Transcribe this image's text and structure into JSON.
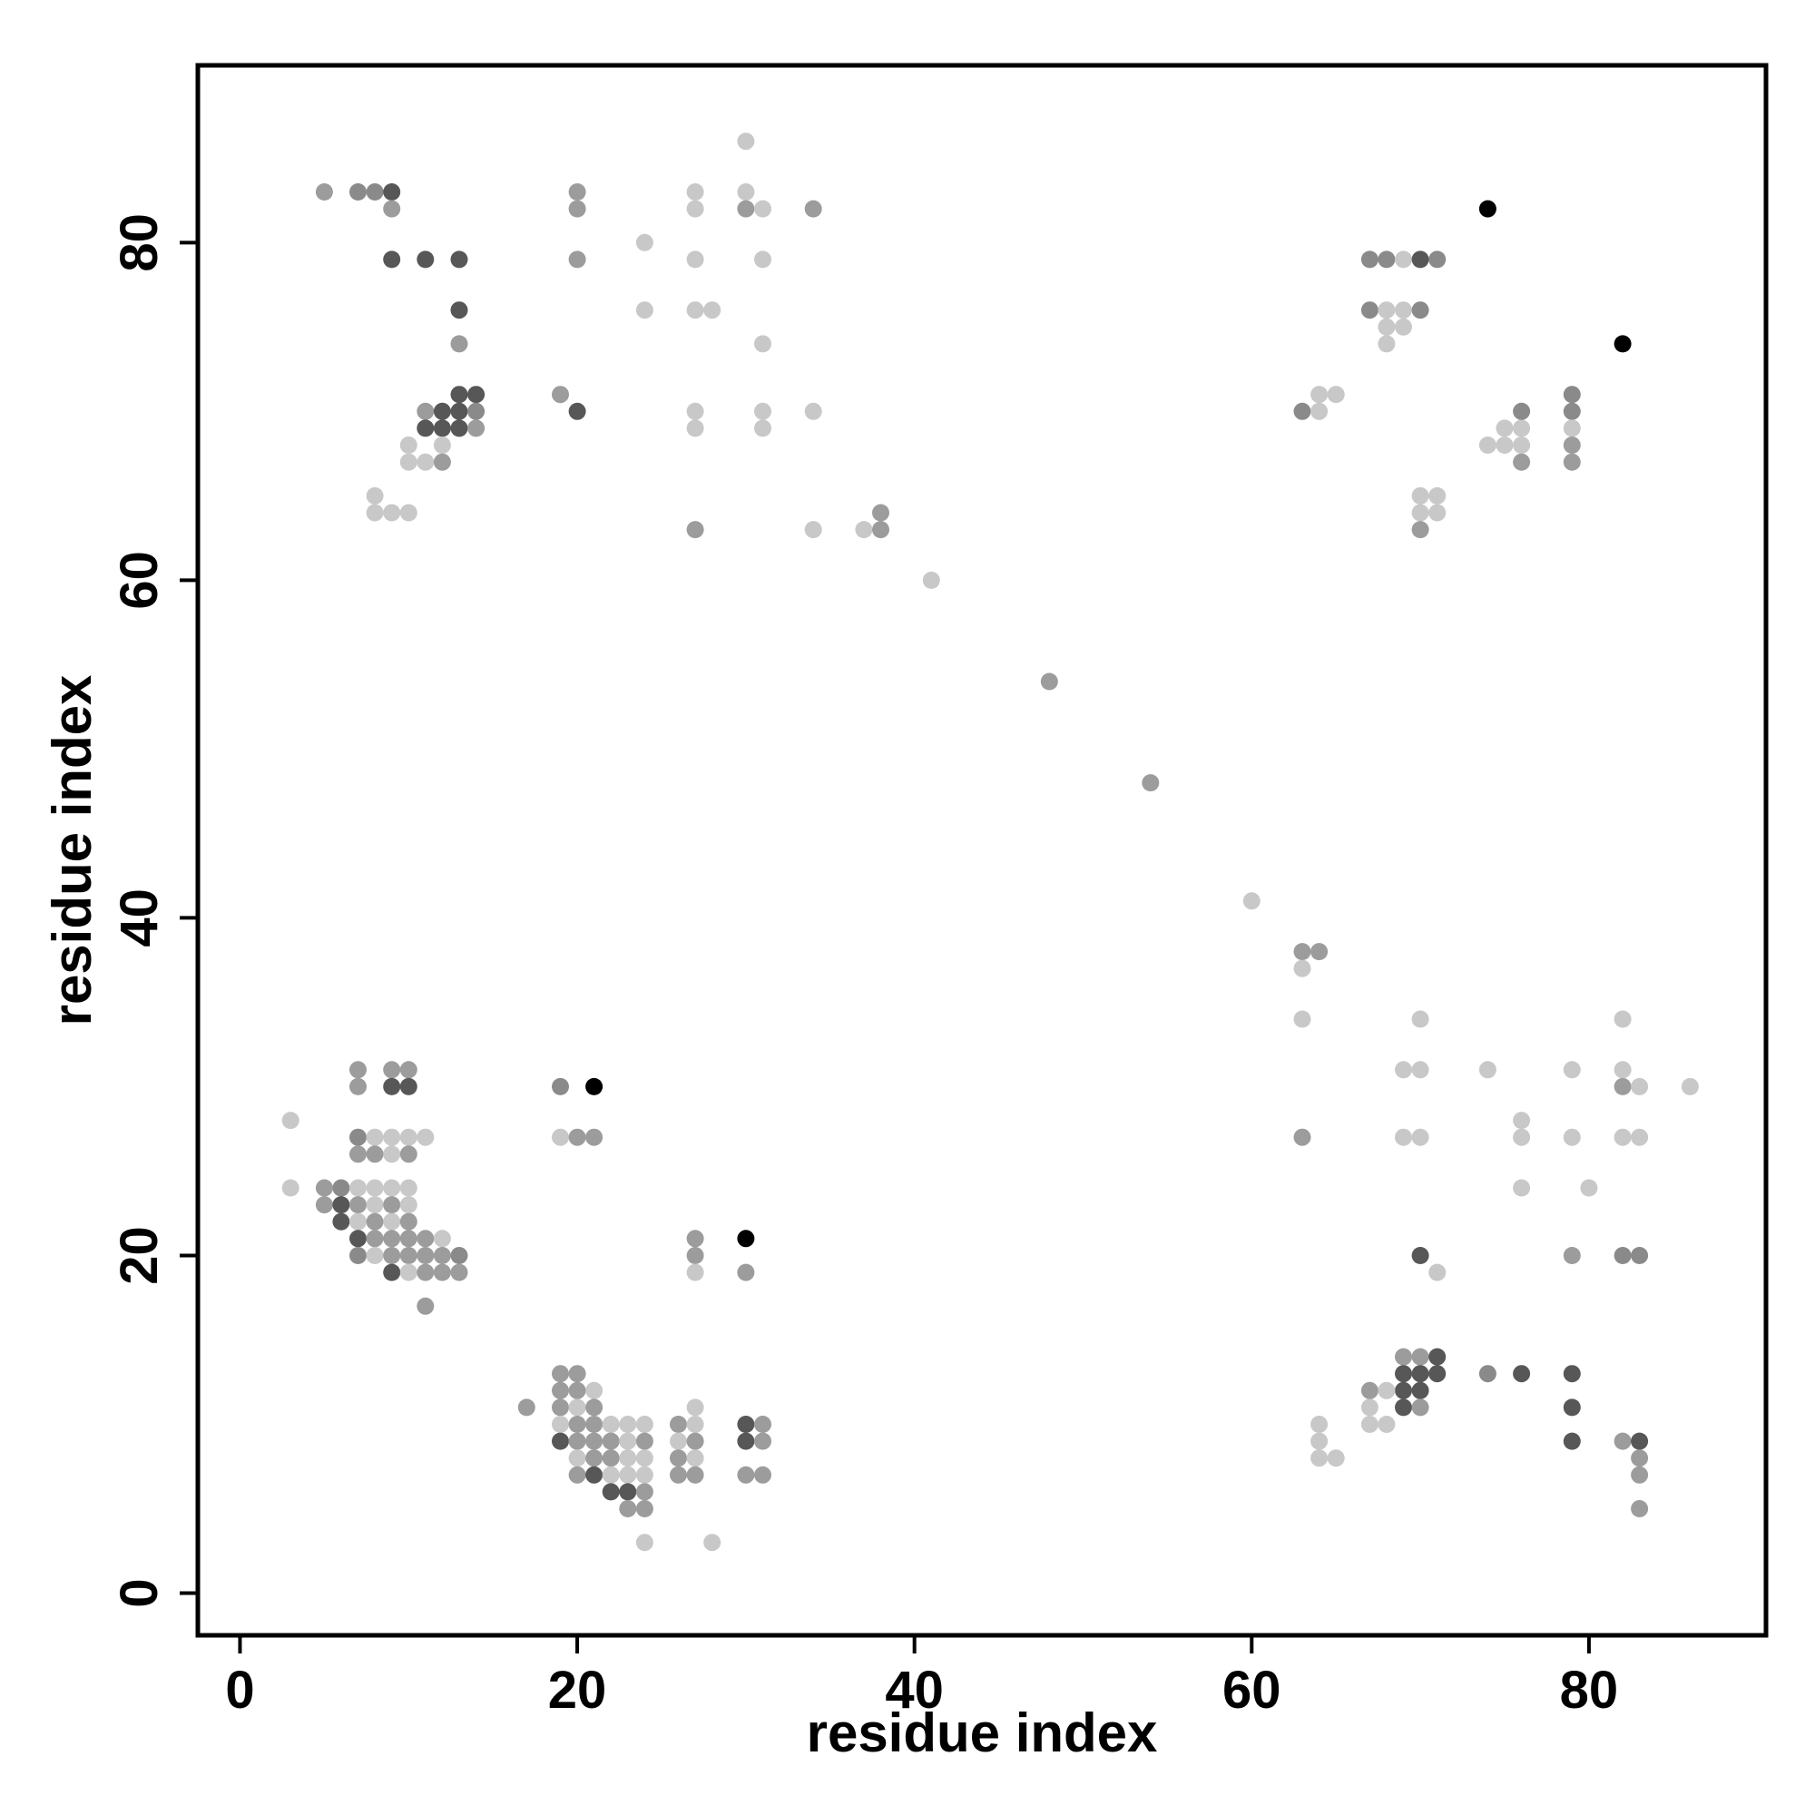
{
  "chart_data": {
    "type": "scatter",
    "title": "",
    "xlabel": "residue index",
    "ylabel": "residue index",
    "xlim": [
      -2.5,
      90.5
    ],
    "ylim": [
      -2.5,
      90.5
    ],
    "xticks": [
      0,
      20,
      40,
      60,
      80
    ],
    "yticks": [
      0,
      20,
      40,
      60,
      80
    ],
    "grid": false,
    "legend": "none",
    "point_colors": {
      "1": "#c8c8c8",
      "2": "#9c9c9c",
      "3": "#8a8a8a",
      "4": "#575757",
      "5": "#000000"
    },
    "points": [
      [
        5,
        83,
        2
      ],
      [
        7,
        83,
        3
      ],
      [
        8,
        83,
        3
      ],
      [
        9,
        83,
        4
      ],
      [
        9,
        82,
        2
      ],
      [
        9,
        79,
        4
      ],
      [
        11,
        79,
        4
      ],
      [
        13,
        79,
        4
      ],
      [
        13,
        76,
        4
      ],
      [
        13,
        74,
        2
      ],
      [
        11,
        70,
        2
      ],
      [
        12,
        70,
        4
      ],
      [
        13,
        70,
        4
      ],
      [
        13,
        71,
        4
      ],
      [
        14,
        71,
        4
      ],
      [
        14,
        70,
        3
      ],
      [
        11,
        69,
        4
      ],
      [
        12,
        69,
        4
      ],
      [
        13,
        69,
        4
      ],
      [
        14,
        69,
        2
      ],
      [
        10,
        68,
        1
      ],
      [
        12,
        68,
        1
      ],
      [
        10,
        67,
        1
      ],
      [
        11,
        67,
        1
      ],
      [
        12,
        67,
        2
      ],
      [
        8,
        65,
        1
      ],
      [
        8,
        64,
        1
      ],
      [
        9,
        64,
        1
      ],
      [
        10,
        64,
        1
      ],
      [
        20,
        83,
        2
      ],
      [
        20,
        82,
        2
      ],
      [
        20,
        79,
        2
      ],
      [
        19,
        71,
        2
      ],
      [
        20,
        70,
        4
      ],
      [
        24,
        80,
        1
      ],
      [
        24,
        76,
        1
      ],
      [
        27,
        83,
        1
      ],
      [
        27,
        82,
        1
      ],
      [
        27,
        79,
        1
      ],
      [
        27,
        76,
        1
      ],
      [
        28,
        76,
        1
      ],
      [
        27,
        70,
        1
      ],
      [
        27,
        69,
        1
      ],
      [
        27,
        63,
        2
      ],
      [
        30,
        86,
        1
      ],
      [
        30,
        83,
        1
      ],
      [
        30,
        82,
        2
      ],
      [
        31,
        82,
        1
      ],
      [
        31,
        79,
        1
      ],
      [
        31,
        74,
        1
      ],
      [
        31,
        70,
        1
      ],
      [
        31,
        69,
        1
      ],
      [
        34,
        82,
        2
      ],
      [
        34,
        70,
        1
      ],
      [
        34,
        63,
        1
      ],
      [
        37,
        63,
        1
      ],
      [
        38,
        63,
        2
      ],
      [
        38,
        64,
        2
      ],
      [
        41,
        60,
        1
      ],
      [
        48,
        54,
        2
      ],
      [
        54,
        48,
        2
      ],
      [
        60,
        41,
        1
      ],
      [
        63,
        70,
        3
      ],
      [
        64,
        70,
        1
      ],
      [
        64,
        71,
        1
      ],
      [
        65,
        71,
        1
      ],
      [
        67,
        79,
        3
      ],
      [
        68,
        79,
        3
      ],
      [
        69,
        79,
        1
      ],
      [
        70,
        79,
        4
      ],
      [
        71,
        79,
        3
      ],
      [
        67,
        76,
        3
      ],
      [
        68,
        76,
        1
      ],
      [
        69,
        76,
        1
      ],
      [
        70,
        76,
        3
      ],
      [
        68,
        75,
        1
      ],
      [
        69,
        75,
        1
      ],
      [
        68,
        74,
        1
      ],
      [
        70,
        65,
        1
      ],
      [
        71,
        65,
        1
      ],
      [
        70,
        64,
        1
      ],
      [
        71,
        64,
        1
      ],
      [
        70,
        63,
        2
      ],
      [
        74,
        82,
        5
      ],
      [
        82,
        74,
        5
      ],
      [
        74,
        68,
        1
      ],
      [
        75,
        68,
        1
      ],
      [
        76,
        68,
        1
      ],
      [
        75,
        69,
        1
      ],
      [
        76,
        69,
        1
      ],
      [
        76,
        70,
        3
      ],
      [
        76,
        67,
        2
      ],
      [
        79,
        71,
        3
      ],
      [
        79,
        70,
        3
      ],
      [
        79,
        69,
        1
      ],
      [
        79,
        68,
        2
      ],
      [
        79,
        67,
        2
      ],
      [
        3,
        28,
        1
      ],
      [
        3,
        24,
        1
      ],
      [
        5,
        24,
        2
      ],
      [
        6,
        24,
        3
      ],
      [
        7,
        24,
        1
      ],
      [
        8,
        24,
        1
      ],
      [
        9,
        24,
        1
      ],
      [
        10,
        24,
        1
      ],
      [
        5,
        23,
        2
      ],
      [
        6,
        23,
        4
      ],
      [
        7,
        23,
        2
      ],
      [
        8,
        23,
        1
      ],
      [
        9,
        23,
        2
      ],
      [
        10,
        23,
        1
      ],
      [
        6,
        22,
        4
      ],
      [
        7,
        22,
        1
      ],
      [
        8,
        22,
        2
      ],
      [
        9,
        22,
        1
      ],
      [
        10,
        22,
        2
      ],
      [
        7,
        21,
        4
      ],
      [
        8,
        21,
        2
      ],
      [
        9,
        21,
        2
      ],
      [
        10,
        21,
        2
      ],
      [
        11,
        21,
        2
      ],
      [
        12,
        21,
        1
      ],
      [
        7,
        20,
        3
      ],
      [
        8,
        20,
        1
      ],
      [
        9,
        20,
        2
      ],
      [
        10,
        20,
        2
      ],
      [
        11,
        20,
        2
      ],
      [
        12,
        20,
        2
      ],
      [
        13,
        20,
        3
      ],
      [
        9,
        19,
        4
      ],
      [
        10,
        19,
        1
      ],
      [
        11,
        19,
        2
      ],
      [
        12,
        19,
        2
      ],
      [
        13,
        19,
        2
      ],
      [
        11,
        17,
        2
      ],
      [
        7,
        31,
        2
      ],
      [
        9,
        31,
        2
      ],
      [
        10,
        31,
        2
      ],
      [
        7,
        30,
        2
      ],
      [
        9,
        30,
        4
      ],
      [
        10,
        30,
        4
      ],
      [
        7,
        27,
        3
      ],
      [
        8,
        27,
        1
      ],
      [
        9,
        27,
        1
      ],
      [
        10,
        27,
        1
      ],
      [
        11,
        27,
        1
      ],
      [
        7,
        26,
        2
      ],
      [
        8,
        26,
        2
      ],
      [
        9,
        26,
        1
      ],
      [
        10,
        26,
        2
      ],
      [
        19,
        30,
        3
      ],
      [
        21,
        30,
        5
      ],
      [
        19,
        27,
        1
      ],
      [
        20,
        27,
        2
      ],
      [
        21,
        27,
        2
      ],
      [
        27,
        21,
        2
      ],
      [
        27,
        20,
        2
      ],
      [
        27,
        19,
        1
      ],
      [
        30,
        21,
        5
      ],
      [
        30,
        19,
        2
      ],
      [
        17,
        11,
        2
      ],
      [
        19,
        13,
        2
      ],
      [
        20,
        13,
        2
      ],
      [
        19,
        12,
        2
      ],
      [
        20,
        12,
        2
      ],
      [
        21,
        12,
        1
      ],
      [
        19,
        11,
        2
      ],
      [
        20,
        11,
        1
      ],
      [
        21,
        11,
        2
      ],
      [
        19,
        10,
        1
      ],
      [
        20,
        10,
        2
      ],
      [
        21,
        10,
        2
      ],
      [
        22,
        10,
        1
      ],
      [
        23,
        10,
        1
      ],
      [
        24,
        10,
        1
      ],
      [
        19,
        9,
        4
      ],
      [
        20,
        9,
        2
      ],
      [
        21,
        9,
        2
      ],
      [
        22,
        9,
        2
      ],
      [
        23,
        9,
        1
      ],
      [
        24,
        9,
        2
      ],
      [
        20,
        8,
        1
      ],
      [
        21,
        8,
        2
      ],
      [
        22,
        8,
        2
      ],
      [
        23,
        8,
        1
      ],
      [
        24,
        8,
        1
      ],
      [
        20,
        7,
        2
      ],
      [
        21,
        7,
        4
      ],
      [
        22,
        7,
        1
      ],
      [
        23,
        7,
        1
      ],
      [
        24,
        7,
        1
      ],
      [
        22,
        6,
        4
      ],
      [
        23,
        6,
        4
      ],
      [
        24,
        6,
        2
      ],
      [
        23,
        5,
        2
      ],
      [
        24,
        5,
        2
      ],
      [
        26,
        10,
        2
      ],
      [
        27,
        10,
        1
      ],
      [
        27,
        11,
        1
      ],
      [
        26,
        9,
        1
      ],
      [
        27,
        9,
        2
      ],
      [
        26,
        8,
        2
      ],
      [
        27,
        8,
        1
      ],
      [
        26,
        7,
        2
      ],
      [
        27,
        7,
        2
      ],
      [
        30,
        10,
        4
      ],
      [
        31,
        10,
        2
      ],
      [
        30,
        9,
        4
      ],
      [
        31,
        9,
        2
      ],
      [
        30,
        7,
        2
      ],
      [
        31,
        7,
        2
      ],
      [
        24,
        3,
        1
      ],
      [
        28,
        3,
        1
      ],
      [
        63,
        38,
        2
      ],
      [
        64,
        38,
        2
      ],
      [
        63,
        37,
        1
      ],
      [
        63,
        34,
        1
      ],
      [
        63,
        27,
        2
      ],
      [
        69,
        31,
        1
      ],
      [
        70,
        31,
        1
      ],
      [
        70,
        34,
        1
      ],
      [
        69,
        27,
        1
      ],
      [
        70,
        27,
        1
      ],
      [
        74,
        31,
        1
      ],
      [
        76,
        28,
        1
      ],
      [
        76,
        27,
        1
      ],
      [
        76,
        24,
        1
      ],
      [
        79,
        31,
        1
      ],
      [
        79,
        27,
        1
      ],
      [
        80,
        24,
        1
      ],
      [
        82,
        34,
        1
      ],
      [
        82,
        31,
        1
      ],
      [
        82,
        30,
        2
      ],
      [
        83,
        30,
        1
      ],
      [
        82,
        27,
        1
      ],
      [
        83,
        27,
        1
      ],
      [
        86,
        30,
        1
      ],
      [
        70,
        20,
        4
      ],
      [
        71,
        19,
        1
      ],
      [
        79,
        20,
        2
      ],
      [
        82,
        20,
        3
      ],
      [
        83,
        20,
        3
      ],
      [
        69,
        14,
        2
      ],
      [
        70,
        14,
        2
      ],
      [
        71,
        14,
        4
      ],
      [
        69,
        13,
        4
      ],
      [
        70,
        13,
        4
      ],
      [
        71,
        13,
        4
      ],
      [
        69,
        12,
        4
      ],
      [
        70,
        12,
        4
      ],
      [
        67,
        12,
        2
      ],
      [
        68,
        12,
        1
      ],
      [
        67,
        11,
        1
      ],
      [
        69,
        11,
        4
      ],
      [
        70,
        11,
        2
      ],
      [
        64,
        10,
        1
      ],
      [
        67,
        10,
        1
      ],
      [
        68,
        10,
        1
      ],
      [
        64,
        9,
        1
      ],
      [
        64,
        8,
        1
      ],
      [
        65,
        8,
        1
      ],
      [
        74,
        13,
        3
      ],
      [
        76,
        13,
        4
      ],
      [
        79,
        13,
        4
      ],
      [
        79,
        11,
        4
      ],
      [
        79,
        9,
        4
      ],
      [
        82,
        9,
        2
      ],
      [
        83,
        9,
        4
      ],
      [
        83,
        8,
        2
      ],
      [
        83,
        7,
        2
      ],
      [
        83,
        5,
        2
      ]
    ]
  }
}
